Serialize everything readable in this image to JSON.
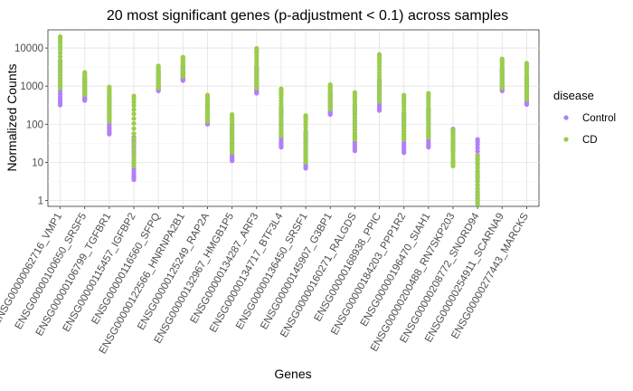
{
  "chart_data": {
    "type": "scatter",
    "title": "20 most significant genes (p-adjustment < 0.1) across samples",
    "xlabel": "Genes",
    "ylabel": "Normalized Counts",
    "y_scale": "log10",
    "ylim": [
      0.7,
      30000
    ],
    "y_ticks": [
      {
        "value": 1,
        "label": "1"
      },
      {
        "value": 10,
        "label": "10"
      },
      {
        "value": 100,
        "label": "100"
      },
      {
        "value": 1000,
        "label": "1000"
      },
      {
        "value": 10000,
        "label": "10000"
      }
    ],
    "grid": true,
    "legend": {
      "title": "disease",
      "position": "right"
    },
    "categories": [
      "ENSG00000062716_VMP1",
      "ENSG00000100650_SRSF5",
      "ENSG00000106799_TGFBR1",
      "ENSG00000115457_IGFBP2",
      "ENSG00000116560_SFPQ",
      "ENSG00000122566_HNRNPA2B1",
      "ENSG00000125249_RAP2A",
      "ENSG00000132967_HMGB1P5",
      "ENSG00000134287_ARF3",
      "ENSG00000134717_BTF3L4",
      "ENSG00000136450_SRSF1",
      "ENSG00000145907_G3BP1",
      "ENSG00000160271_RALGDS",
      "ENSG00000168938_PPIC",
      "ENSG00000184203_PPP1R2",
      "ENSG00000196470_SIAH1",
      "ENSG00000200488_RN7SKP203",
      "ENSG00000208772_SNORD94",
      "ENSG00000254911_SCARNA9",
      "ENSG00000277443_MARCKS"
    ],
    "series": [
      {
        "name": "Control",
        "color": "#b27ff7",
        "ranges": [
          {
            "min": 320,
            "max": 4500
          },
          {
            "min": 420,
            "max": 1600
          },
          {
            "min": 55,
            "max": 550
          },
          {
            "min": 3.5,
            "max": 45
          },
          {
            "min": 750,
            "max": 2400
          },
          {
            "min": 1400,
            "max": 3400
          },
          {
            "min": 100,
            "max": 320
          },
          {
            "min": 11,
            "max": 100
          },
          {
            "min": 650,
            "max": 3200
          },
          {
            "min": 25,
            "max": 280
          },
          {
            "min": 7,
            "max": 60
          },
          {
            "min": 180,
            "max": 700
          },
          {
            "min": 20,
            "max": 300
          },
          {
            "min": 230,
            "max": 1500
          },
          {
            "min": 18,
            "max": 200
          },
          {
            "min": 25,
            "max": 250
          },
          {
            "min": 20,
            "max": 75
          },
          {
            "min": 1,
            "max": 40
          },
          {
            "min": 750,
            "max": 2800
          },
          {
            "min": 330,
            "max": 1700
          }
        ]
      },
      {
        "name": "CD",
        "color": "#9acd4c",
        "ranges": [
          {
            "min": 900,
            "max": 20000
          },
          {
            "min": 600,
            "max": 2300
          },
          {
            "min": 120,
            "max": 950
          },
          {
            "min": 8,
            "max": 550
          },
          {
            "min": 900,
            "max": 3400
          },
          {
            "min": 1800,
            "max": 5800
          },
          {
            "min": 120,
            "max": 580
          },
          {
            "min": 18,
            "max": 180
          },
          {
            "min": 900,
            "max": 9800
          },
          {
            "min": 50,
            "max": 850
          },
          {
            "min": 10,
            "max": 170
          },
          {
            "min": 250,
            "max": 1100
          },
          {
            "min": 40,
            "max": 680
          },
          {
            "min": 400,
            "max": 6800
          },
          {
            "min": 40,
            "max": 580
          },
          {
            "min": 45,
            "max": 650
          },
          {
            "min": 8,
            "max": 70
          },
          {
            "min": 0.8,
            "max": 15
          },
          {
            "min": 900,
            "max": 5200
          },
          {
            "min": 450,
            "max": 4000
          }
        ]
      }
    ]
  }
}
